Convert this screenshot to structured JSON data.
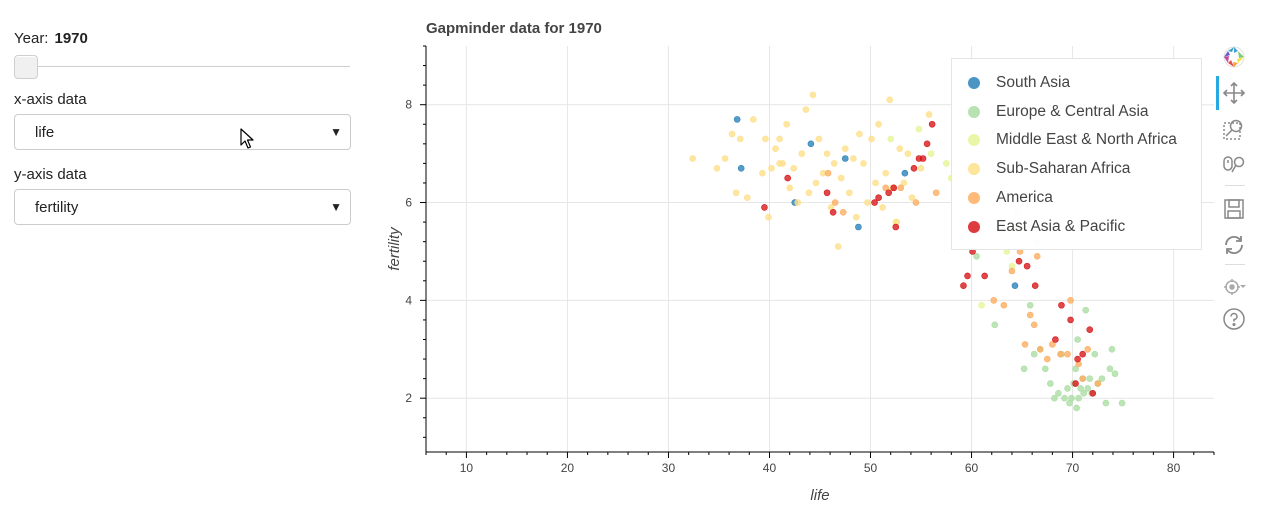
{
  "controls": {
    "year_label": "Year:",
    "year_value": "1970",
    "slider_value": 1970,
    "x_axis_label": "x-axis data",
    "x_axis_value": "life",
    "y_axis_label": "y-axis data",
    "y_axis_value": "fertility"
  },
  "toolbar": [
    "bokeh-logo-icon",
    "pan-icon",
    "box-zoom-icon",
    "wheel-zoom-icon",
    "save-icon",
    "reset-icon",
    "hover-icon",
    "help-icon"
  ],
  "chart_data": {
    "type": "scatter",
    "title": "Gapminder data for 1970",
    "xlabel": "life",
    "ylabel": "fertility",
    "xlim": [
      6,
      84
    ],
    "ylim": [
      0.9,
      9.2
    ],
    "x_ticks": [
      10,
      20,
      30,
      40,
      50,
      60,
      70,
      80
    ],
    "y_ticks": [
      2,
      4,
      6,
      8
    ],
    "grid": true,
    "legend_position": "top-right",
    "series": [
      {
        "name": "South Asia",
        "color": "#2b83ba",
        "points": [
          [
            36.8,
            7.7
          ],
          [
            37.2,
            6.7
          ],
          [
            42.5,
            6.0
          ],
          [
            44.1,
            7.2
          ],
          [
            47.5,
            6.9
          ],
          [
            48.8,
            5.5
          ],
          [
            53.4,
            6.6
          ],
          [
            64.3,
            4.3
          ]
        ]
      },
      {
        "name": "Europe & Central Asia",
        "color": "#abdda4",
        "points": [
          [
            60.5,
            4.9
          ],
          [
            62.3,
            3.5
          ],
          [
            65.2,
            2.6
          ],
          [
            65.8,
            3.9
          ],
          [
            66.2,
            2.9
          ],
          [
            66.8,
            3.0
          ],
          [
            67.3,
            2.6
          ],
          [
            67.8,
            2.3
          ],
          [
            68.2,
            2.0
          ],
          [
            68.6,
            2.1
          ],
          [
            68.9,
            2.9
          ],
          [
            69.2,
            2.0
          ],
          [
            69.5,
            2.2
          ],
          [
            69.7,
            1.9
          ],
          [
            69.9,
            2.0
          ],
          [
            70.1,
            2.3
          ],
          [
            70.3,
            2.6
          ],
          [
            70.4,
            1.8
          ],
          [
            70.6,
            2.0
          ],
          [
            70.8,
            2.2
          ],
          [
            71.0,
            2.4
          ],
          [
            71.1,
            2.1
          ],
          [
            71.3,
            3.8
          ],
          [
            71.5,
            2.2
          ],
          [
            71.7,
            2.4
          ],
          [
            71.9,
            2.1
          ],
          [
            72.2,
            2.9
          ],
          [
            72.5,
            2.3
          ],
          [
            72.9,
            2.4
          ],
          [
            73.3,
            1.9
          ],
          [
            73.7,
            2.6
          ],
          [
            73.9,
            3.0
          ],
          [
            74.2,
            2.5
          ],
          [
            74.9,
            1.9
          ],
          [
            70.5,
            3.2
          ],
          [
            64.5,
            5.8
          ],
          [
            66.5,
            5.2
          ]
        ]
      },
      {
        "name": "Middle East & North Africa",
        "color": "#e6f598",
        "points": [
          [
            52.0,
            7.3
          ],
          [
            54.8,
            7.5
          ],
          [
            56.0,
            7.0
          ],
          [
            57.5,
            6.8
          ],
          [
            58.0,
            6.5
          ],
          [
            59.5,
            6.6
          ],
          [
            60.0,
            6.0
          ],
          [
            62.0,
            6.4
          ],
          [
            63.5,
            5.0
          ],
          [
            64.0,
            4.7
          ],
          [
            52.5,
            5.6
          ],
          [
            61.0,
            3.9
          ]
        ]
      },
      {
        "name": "Sub-Saharan Africa",
        "color": "#fee08b",
        "points": [
          [
            32.4,
            6.9
          ],
          [
            34.8,
            6.7
          ],
          [
            35.6,
            6.9
          ],
          [
            36.3,
            7.4
          ],
          [
            36.7,
            6.2
          ],
          [
            37.1,
            7.3
          ],
          [
            37.8,
            6.1
          ],
          [
            38.4,
            7.7
          ],
          [
            39.3,
            6.6
          ],
          [
            39.6,
            7.3
          ],
          [
            39.9,
            5.7
          ],
          [
            40.2,
            6.7
          ],
          [
            40.6,
            7.1
          ],
          [
            41.0,
            7.3
          ],
          [
            41.3,
            6.8
          ],
          [
            41.7,
            7.6
          ],
          [
            42.0,
            6.3
          ],
          [
            42.4,
            6.7
          ],
          [
            42.8,
            6.0
          ],
          [
            43.2,
            7.0
          ],
          [
            43.6,
            7.9
          ],
          [
            43.9,
            6.2
          ],
          [
            44.3,
            8.2
          ],
          [
            44.6,
            6.4
          ],
          [
            44.9,
            7.3
          ],
          [
            45.3,
            6.6
          ],
          [
            45.7,
            7.0
          ],
          [
            46.1,
            5.9
          ],
          [
            46.4,
            6.8
          ],
          [
            46.8,
            5.1
          ],
          [
            47.1,
            6.5
          ],
          [
            47.5,
            7.1
          ],
          [
            47.9,
            6.2
          ],
          [
            48.3,
            6.9
          ],
          [
            48.6,
            5.7
          ],
          [
            48.9,
            7.4
          ],
          [
            49.3,
            6.8
          ],
          [
            49.7,
            6.0
          ],
          [
            50.1,
            7.3
          ],
          [
            50.5,
            6.4
          ],
          [
            50.8,
            7.6
          ],
          [
            51.2,
            5.9
          ],
          [
            51.5,
            6.6
          ],
          [
            51.9,
            8.1
          ],
          [
            52.2,
            6.3
          ],
          [
            52.6,
            5.6
          ],
          [
            52.9,
            7.1
          ],
          [
            53.3,
            6.4
          ],
          [
            53.7,
            7.0
          ],
          [
            54.1,
            6.1
          ],
          [
            55.0,
            6.7
          ],
          [
            55.8,
            7.8
          ],
          [
            41.0,
            6.8
          ]
        ]
      },
      {
        "name": "America",
        "color": "#fdae61",
        "points": [
          [
            45.8,
            6.6
          ],
          [
            46.5,
            6.0
          ],
          [
            47.3,
            5.8
          ],
          [
            51.5,
            6.3
          ],
          [
            53.0,
            6.3
          ],
          [
            54.5,
            6.0
          ],
          [
            56.5,
            6.2
          ],
          [
            62.2,
            4.0
          ],
          [
            63.2,
            3.9
          ],
          [
            64.0,
            4.6
          ],
          [
            64.8,
            5.0
          ],
          [
            65.3,
            3.1
          ],
          [
            65.8,
            3.7
          ],
          [
            66.2,
            3.5
          ],
          [
            66.8,
            3.0
          ],
          [
            67.5,
            2.8
          ],
          [
            68.0,
            3.1
          ],
          [
            68.8,
            2.9
          ],
          [
            69.5,
            2.9
          ],
          [
            69.8,
            4.0
          ],
          [
            70.6,
            2.7
          ],
          [
            71.0,
            2.4
          ],
          [
            71.5,
            3.0
          ],
          [
            72.5,
            2.3
          ],
          [
            66.5,
            4.9
          ],
          [
            64.5,
            5.5
          ]
        ]
      },
      {
        "name": "East Asia & Pacific",
        "color": "#d7191c",
        "points": [
          [
            39.5,
            5.9
          ],
          [
            41.8,
            6.5
          ],
          [
            45.7,
            6.2
          ],
          [
            46.3,
            5.8
          ],
          [
            50.4,
            6.0
          ],
          [
            50.8,
            6.1
          ],
          [
            51.8,
            6.2
          ],
          [
            52.3,
            6.3
          ],
          [
            52.5,
            5.5
          ],
          [
            54.3,
            6.7
          ],
          [
            54.8,
            6.9
          ],
          [
            55.2,
            6.9
          ],
          [
            55.6,
            7.2
          ],
          [
            56.1,
            7.6
          ],
          [
            59.2,
            4.3
          ],
          [
            59.6,
            4.5
          ],
          [
            60.1,
            5.0
          ],
          [
            61.3,
            4.5
          ],
          [
            64.7,
            4.8
          ],
          [
            65.5,
            4.7
          ],
          [
            66.3,
            4.3
          ],
          [
            68.3,
            3.2
          ],
          [
            68.9,
            3.9
          ],
          [
            69.8,
            3.6
          ],
          [
            70.5,
            2.8
          ],
          [
            71.0,
            2.9
          ],
          [
            71.7,
            3.4
          ],
          [
            72.0,
            2.1
          ],
          [
            70.3,
            2.3
          ]
        ]
      }
    ]
  }
}
